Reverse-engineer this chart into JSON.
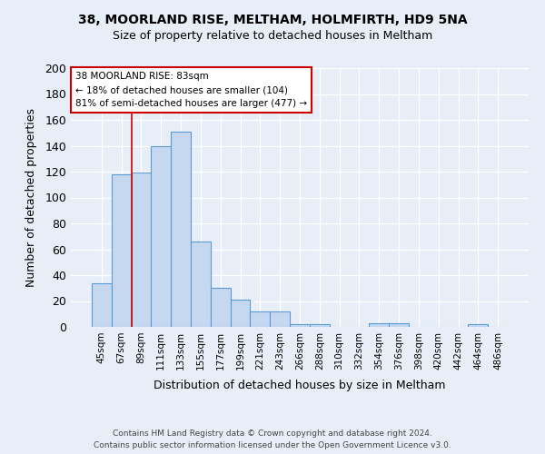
{
  "title_line1": "38, MOORLAND RISE, MELTHAM, HOLMFIRTH, HD9 5NA",
  "title_line2": "Size of property relative to detached houses in Meltham",
  "xlabel": "Distribution of detached houses by size in Meltham",
  "ylabel": "Number of detached properties",
  "footnote1": "Contains HM Land Registry data © Crown copyright and database right 2024.",
  "footnote2": "Contains public sector information licensed under the Open Government Licence v3.0.",
  "bar_labels": [
    "45sqm",
    "67sqm",
    "89sqm",
    "111sqm",
    "133sqm",
    "155sqm",
    "177sqm",
    "199sqm",
    "221sqm",
    "243sqm",
    "266sqm",
    "288sqm",
    "310sqm",
    "332sqm",
    "354sqm",
    "376sqm",
    "398sqm",
    "420sqm",
    "442sqm",
    "464sqm",
    "486sqm"
  ],
  "bar_values": [
    34,
    118,
    119,
    140,
    151,
    66,
    30,
    21,
    12,
    12,
    2,
    2,
    0,
    0,
    3,
    3,
    0,
    0,
    0,
    2,
    0
  ],
  "bar_color": "#c5d8f0",
  "bar_edge_color": "#5b9bd5",
  "background_color": "#e8eef7",
  "grid_color": "#ffffff",
  "annotation_line1": "38 MOORLAND RISE: 83sqm",
  "annotation_line2": "← 18% of detached houses are smaller (104)",
  "annotation_line3": "81% of semi-detached houses are larger (477) →",
  "annotation_box_color": "#ffffff",
  "annotation_box_edge": "#cc0000",
  "redline_x": 1.5,
  "ylim": [
    0,
    200
  ],
  "yticks": [
    0,
    20,
    40,
    60,
    80,
    100,
    120,
    140,
    160,
    180,
    200
  ]
}
